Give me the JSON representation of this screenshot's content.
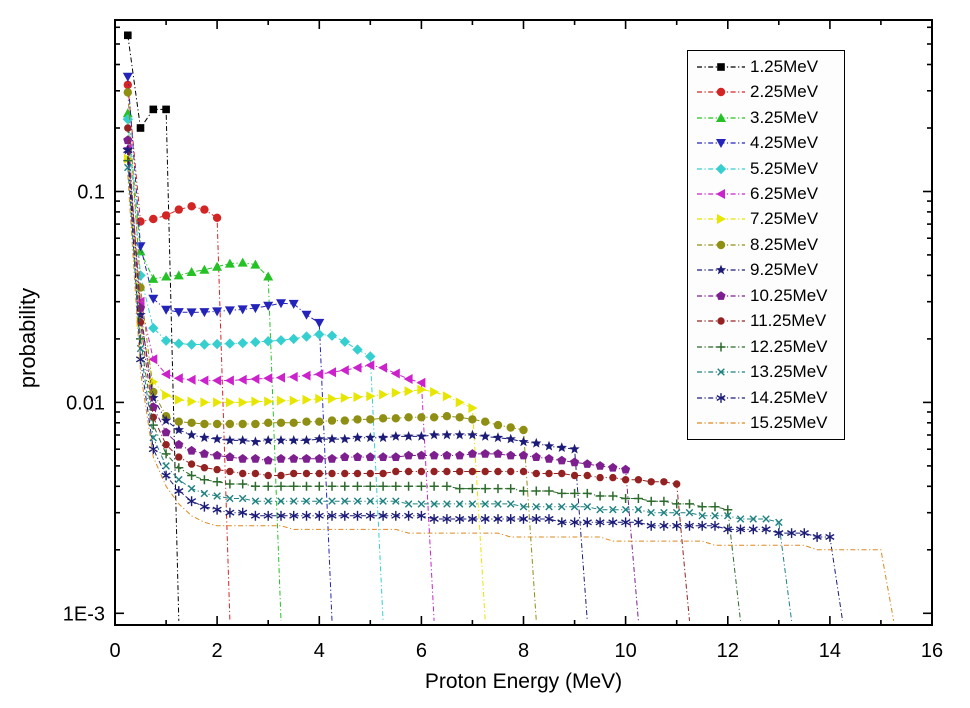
{
  "figure": {
    "background": "#ffffff",
    "frame_color": "#000000"
  },
  "chart_data": {
    "type": "line",
    "title": "",
    "xlabel": "Proton Energy (MeV)",
    "ylabel": "probability",
    "xlim": [
      0,
      16
    ],
    "ylim_log": [
      0.00088,
      0.65
    ],
    "grid": false,
    "legend_position": "top-right",
    "x_axis": {
      "major_ticks": [
        0,
        2,
        4,
        6,
        8,
        10,
        12,
        14,
        16
      ],
      "major_tick_labels": [
        "0",
        "2",
        "4",
        "6",
        "8",
        "10",
        "12",
        "14",
        "16"
      ],
      "minor_ticks": [
        1,
        3,
        5,
        7,
        9,
        11,
        13,
        15
      ]
    },
    "y_axis": {
      "scale": "log",
      "major_ticks": [
        0.1,
        0.01,
        0.001
      ],
      "major_tick_labels": [
        "0.1",
        "0.01",
        "1E-3"
      ]
    },
    "x_start": 0.25,
    "x_step": 0.25,
    "drop_to": 0.00092,
    "series": [
      {
        "name": "1.25MeV",
        "color": "#000000",
        "marker": "square",
        "line": "dashdot",
        "cutoff": 1.25,
        "values": [
          0.55,
          0.2,
          0.245,
          0.245
        ]
      },
      {
        "name": "2.25MeV",
        "color": "#d42525",
        "marker": "circle",
        "line": "dashdot",
        "cutoff": 2.25,
        "values": [
          0.32,
          0.072,
          0.074,
          0.077,
          0.082,
          0.085,
          0.082,
          0.075
        ]
      },
      {
        "name": "3.25MeV",
        "color": "#25c225",
        "marker": "tri-up",
        "line": "dashdot",
        "cutoff": 3.25,
        "values": [
          0.235,
          0.052,
          0.0385,
          0.0395,
          0.04,
          0.0415,
          0.0425,
          0.044,
          0.0455,
          0.046,
          0.045,
          0.0395
        ]
      },
      {
        "name": "4.25MeV",
        "color": "#2424bb",
        "marker": "tri-down",
        "line": "dashdot",
        "cutoff": 4.25,
        "values": [
          0.35,
          0.055,
          0.031,
          0.0275,
          0.0268,
          0.0267,
          0.0268,
          0.027,
          0.0273,
          0.0276,
          0.028,
          0.0287,
          0.0295,
          0.0293,
          0.026,
          0.0238
        ]
      },
      {
        "name": "5.25MeV",
        "color": "#35cfcf",
        "marker": "diamond",
        "line": "dashdot",
        "cutoff": 5.25,
        "values": [
          0.22,
          0.04,
          0.0225,
          0.0196,
          0.019,
          0.0188,
          0.0188,
          0.0189,
          0.019,
          0.0191,
          0.0193,
          0.0195,
          0.0197,
          0.02,
          0.0205,
          0.021,
          0.0207,
          0.0194,
          0.0178,
          0.0165
        ]
      },
      {
        "name": "6.25MeV",
        "color": "#cc22cc",
        "marker": "tri-left",
        "line": "dashdot",
        "cutoff": 6.25,
        "values": [
          0.16,
          0.03,
          0.016,
          0.0136,
          0.013,
          0.0128,
          0.0127,
          0.0127,
          0.0127,
          0.0128,
          0.0129,
          0.013,
          0.0131,
          0.0132,
          0.0134,
          0.0136,
          0.0139,
          0.0142,
          0.0146,
          0.015,
          0.0146,
          0.0137,
          0.0129,
          0.0124
        ]
      },
      {
        "name": "7.25MeV",
        "color": "#e6e600",
        "marker": "tri-right",
        "line": "dashdot",
        "cutoff": 7.25,
        "values": [
          0.143,
          0.024,
          0.0125,
          0.0108,
          0.0103,
          0.0101,
          0.01,
          0.01,
          0.01,
          0.01,
          0.0101,
          0.0101,
          0.0102,
          0.0102,
          0.0103,
          0.0104,
          0.0104,
          0.0105,
          0.0106,
          0.0107,
          0.0109,
          0.0111,
          0.0113,
          0.0115,
          0.0112,
          0.0107,
          0.01,
          0.0094
        ]
      },
      {
        "name": "8.25MeV",
        "color": "#8f8f14",
        "marker": "circle",
        "line": "dashdot",
        "cutoff": 8.25,
        "values": [
          0.295,
          0.035,
          0.0112,
          0.0086,
          0.0081,
          0.008,
          0.0079,
          0.0079,
          0.0079,
          0.0079,
          0.0079,
          0.008,
          0.008,
          0.008,
          0.0081,
          0.0081,
          0.0082,
          0.0082,
          0.0083,
          0.0083,
          0.0084,
          0.0084,
          0.0085,
          0.0085,
          0.0085,
          0.0086,
          0.0085,
          0.0083,
          0.0081,
          0.0078,
          0.0076,
          0.0074
        ]
      },
      {
        "name": "9.25MeV",
        "color": "#1c1c78",
        "marker": "star",
        "line": "dashdot",
        "cutoff": 9.25,
        "values": [
          0.157,
          0.026,
          0.0105,
          0.0082,
          0.0074,
          0.007,
          0.0068,
          0.0067,
          0.0066,
          0.0066,
          0.0065,
          0.0066,
          0.0066,
          0.0066,
          0.0066,
          0.0067,
          0.0067,
          0.0067,
          0.0068,
          0.0068,
          0.0068,
          0.0069,
          0.0069,
          0.0069,
          0.007,
          0.007,
          0.007,
          0.007,
          0.0069,
          0.0068,
          0.0067,
          0.0065,
          0.0064,
          0.0062,
          0.0061,
          0.006
        ]
      },
      {
        "name": "10.25MeV",
        "color": "#7d1f8f",
        "marker": "pentagon",
        "line": "dashdot",
        "cutoff": 10.25,
        "values": [
          0.175,
          0.028,
          0.0095,
          0.0072,
          0.0063,
          0.0059,
          0.0057,
          0.0056,
          0.0055,
          0.0054,
          0.0054,
          0.0053,
          0.0054,
          0.0054,
          0.0054,
          0.0054,
          0.0054,
          0.0055,
          0.0055,
          0.0055,
          0.0055,
          0.0055,
          0.0056,
          0.0056,
          0.0056,
          0.0056,
          0.0056,
          0.0057,
          0.0057,
          0.0057,
          0.0056,
          0.0056,
          0.0055,
          0.0054,
          0.0053,
          0.0052,
          0.0051,
          0.005,
          0.0049,
          0.0048
        ]
      },
      {
        "name": "11.25MeV",
        "color": "#952222",
        "marker": "circle-s",
        "line": "dashdot",
        "cutoff": 11.25,
        "values": [
          0.2,
          0.024,
          0.0085,
          0.0063,
          0.0055,
          0.0051,
          0.0049,
          0.0048,
          0.0047,
          0.0046,
          0.0046,
          0.0045,
          0.0045,
          0.0046,
          0.0046,
          0.0046,
          0.0046,
          0.0046,
          0.0046,
          0.0046,
          0.0046,
          0.0047,
          0.0047,
          0.0047,
          0.0047,
          0.0047,
          0.0047,
          0.0047,
          0.0047,
          0.0047,
          0.0047,
          0.0047,
          0.0046,
          0.0046,
          0.0046,
          0.0045,
          0.0045,
          0.0044,
          0.0044,
          0.0043,
          0.0043,
          0.0042,
          0.0042,
          0.0041
        ]
      },
      {
        "name": "12.25MeV",
        "color": "#2d6b2d",
        "marker": "plus",
        "line": "dashdot",
        "cutoff": 12.25,
        "values": [
          0.14,
          0.02,
          0.0078,
          0.0057,
          0.0049,
          0.0045,
          0.0043,
          0.0042,
          0.0041,
          0.0041,
          0.004,
          0.004,
          0.004,
          0.004,
          0.004,
          0.004,
          0.004,
          0.004,
          0.004,
          0.004,
          0.004,
          0.004,
          0.004,
          0.004,
          0.004,
          0.004,
          0.0039,
          0.0039,
          0.0039,
          0.0039,
          0.0039,
          0.0038,
          0.0038,
          0.0038,
          0.0037,
          0.0037,
          0.0037,
          0.0036,
          0.0036,
          0.0035,
          0.0035,
          0.0034,
          0.0034,
          0.0033,
          0.0033,
          0.0032,
          0.0032,
          0.0031
        ]
      },
      {
        "name": "13.25MeV",
        "color": "#1f8080",
        "marker": "x",
        "line": "dashdot",
        "cutoff": 13.25,
        "values": [
          0.13,
          0.018,
          0.0068,
          0.005,
          0.0043,
          0.0039,
          0.0037,
          0.0036,
          0.0035,
          0.0035,
          0.0034,
          0.0034,
          0.0034,
          0.0034,
          0.0034,
          0.0034,
          0.0034,
          0.0034,
          0.0034,
          0.0034,
          0.0034,
          0.0034,
          0.0033,
          0.0033,
          0.0033,
          0.0033,
          0.0033,
          0.0033,
          0.0033,
          0.0033,
          0.0033,
          0.0032,
          0.0032,
          0.0032,
          0.0032,
          0.0032,
          0.0032,
          0.0031,
          0.0031,
          0.0031,
          0.0031,
          0.003,
          0.003,
          0.003,
          0.003,
          0.0029,
          0.0029,
          0.0029,
          0.0028,
          0.0028,
          0.0028,
          0.0027
        ]
      },
      {
        "name": "14.25MeV",
        "color": "#1c1c78",
        "marker": "asterisk",
        "line": "dashdot",
        "cutoff": 14.25,
        "values": [
          0.157,
          0.016,
          0.006,
          0.0045,
          0.0038,
          0.0034,
          0.0032,
          0.0031,
          0.003,
          0.003,
          0.0029,
          0.0029,
          0.0029,
          0.0029,
          0.0029,
          0.0029,
          0.0029,
          0.0029,
          0.0029,
          0.0029,
          0.0029,
          0.0029,
          0.0029,
          0.0029,
          0.0028,
          0.0028,
          0.0028,
          0.0028,
          0.0028,
          0.0028,
          0.0028,
          0.0028,
          0.0028,
          0.0028,
          0.0027,
          0.0027,
          0.0027,
          0.0027,
          0.0027,
          0.0027,
          0.0027,
          0.0026,
          0.0026,
          0.0026,
          0.0026,
          0.0026,
          0.0026,
          0.0025,
          0.0025,
          0.0025,
          0.0025,
          0.0024,
          0.0024,
          0.0024,
          0.0023,
          0.0023
        ]
      },
      {
        "name": "15.25MeV",
        "color": "#dd8822",
        "marker": "none",
        "line": "dashdot",
        "cutoff": 15.25,
        "values": [
          0.12,
          0.014,
          0.0055,
          0.004,
          0.0033,
          0.0029,
          0.0027,
          0.0026,
          0.0026,
          0.0026,
          0.0026,
          0.0026,
          0.0026,
          0.0025,
          0.0025,
          0.0025,
          0.0025,
          0.0025,
          0.0025,
          0.0025,
          0.0025,
          0.0025,
          0.0024,
          0.0024,
          0.0024,
          0.0024,
          0.0024,
          0.0024,
          0.0024,
          0.0024,
          0.0023,
          0.0023,
          0.0023,
          0.0023,
          0.0023,
          0.0023,
          0.0023,
          0.0023,
          0.0022,
          0.0022,
          0.0022,
          0.0022,
          0.0022,
          0.0022,
          0.0022,
          0.0022,
          0.0021,
          0.0021,
          0.0021,
          0.0021,
          0.0021,
          0.0021,
          0.0021,
          0.0021,
          0.002,
          0.002,
          0.002,
          0.002,
          0.002,
          0.002
        ]
      }
    ]
  }
}
